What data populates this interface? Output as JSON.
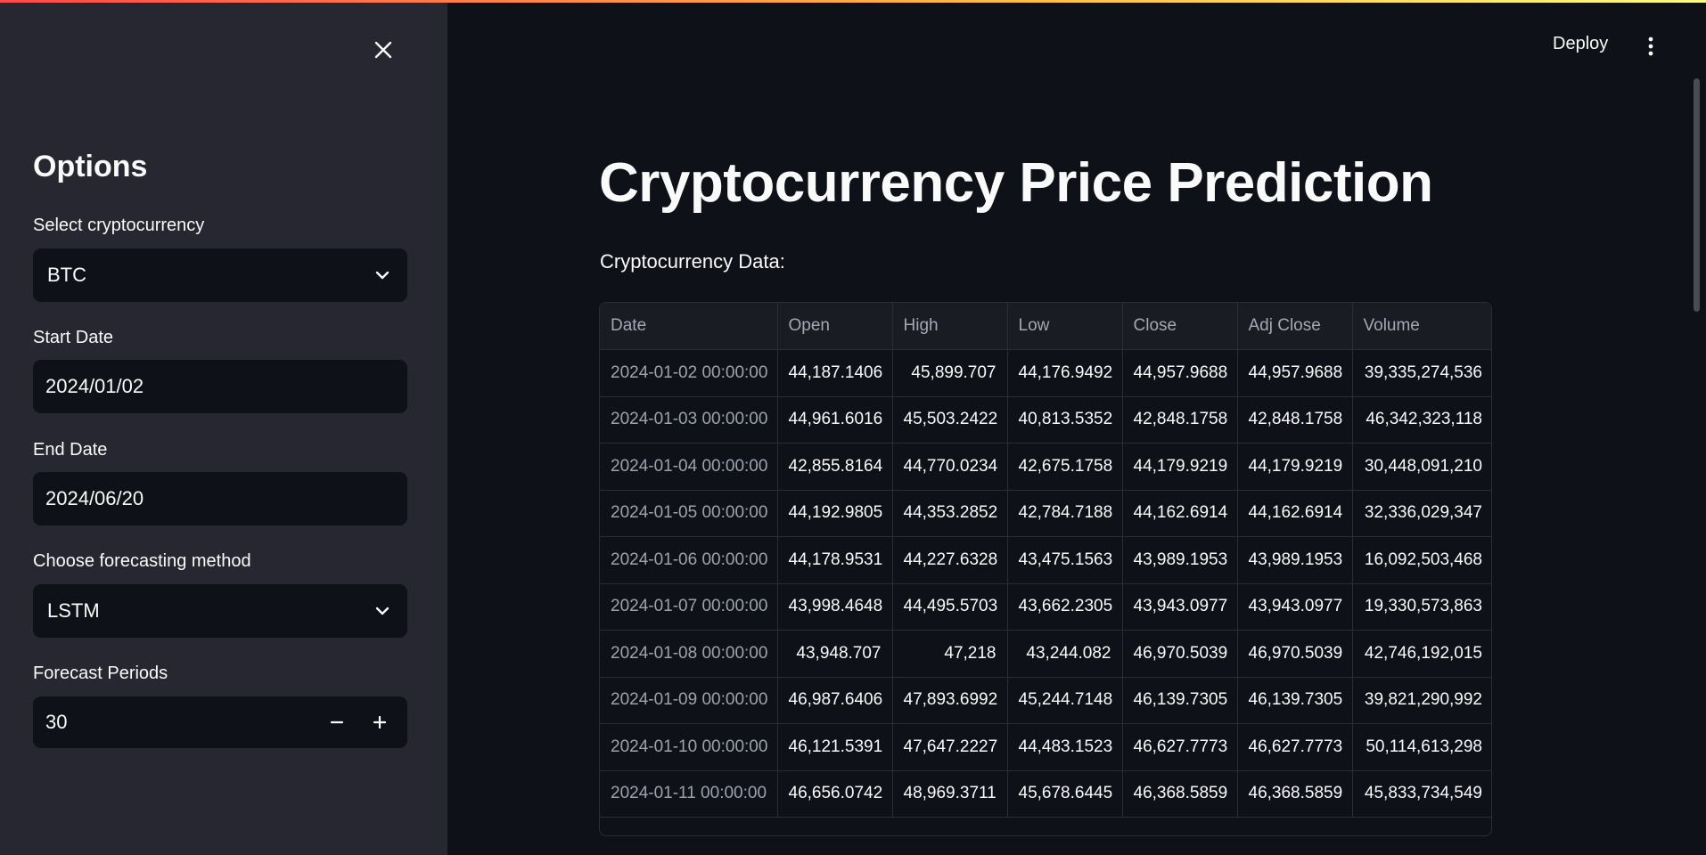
{
  "sidebar": {
    "heading": "Options",
    "crypto": {
      "label": "Select cryptocurrency",
      "value": "BTC"
    },
    "start_date": {
      "label": "Start Date",
      "value": "2024/01/02"
    },
    "end_date": {
      "label": "End Date",
      "value": "2024/06/20"
    },
    "method": {
      "label": "Choose forecasting method",
      "value": "LSTM"
    },
    "periods": {
      "label": "Forecast Periods",
      "value": "30",
      "minus": "−",
      "plus": "+"
    }
  },
  "header": {
    "deploy_label": "Deploy"
  },
  "main": {
    "title": "Cryptocurrency Price Prediction",
    "data_label": "Cryptocurrency Data:"
  },
  "table": {
    "headers": [
      "Date",
      "Open",
      "High",
      "Low",
      "Close",
      "Adj Close",
      "Volume"
    ],
    "rows": [
      [
        "2024-01-02 00:00:00",
        "44,187.1406",
        "45,899.707",
        "44,176.9492",
        "44,957.9688",
        "44,957.9688",
        "39,335,274,536"
      ],
      [
        "2024-01-03 00:00:00",
        "44,961.6016",
        "45,503.2422",
        "40,813.5352",
        "42,848.1758",
        "42,848.1758",
        "46,342,323,118"
      ],
      [
        "2024-01-04 00:00:00",
        "42,855.8164",
        "44,770.0234",
        "42,675.1758",
        "44,179.9219",
        "44,179.9219",
        "30,448,091,210"
      ],
      [
        "2024-01-05 00:00:00",
        "44,192.9805",
        "44,353.2852",
        "42,784.7188",
        "44,162.6914",
        "44,162.6914",
        "32,336,029,347"
      ],
      [
        "2024-01-06 00:00:00",
        "44,178.9531",
        "44,227.6328",
        "43,475.1563",
        "43,989.1953",
        "43,989.1953",
        "16,092,503,468"
      ],
      [
        "2024-01-07 00:00:00",
        "43,998.4648",
        "44,495.5703",
        "43,662.2305",
        "43,943.0977",
        "43,943.0977",
        "19,330,573,863"
      ],
      [
        "2024-01-08 00:00:00",
        "43,948.707",
        "47,218",
        "43,244.082",
        "46,970.5039",
        "46,970.5039",
        "42,746,192,015"
      ],
      [
        "2024-01-09 00:00:00",
        "46,987.6406",
        "47,893.6992",
        "45,244.7148",
        "46,139.7305",
        "46,139.7305",
        "39,821,290,992"
      ],
      [
        "2024-01-10 00:00:00",
        "46,121.5391",
        "47,647.2227",
        "44,483.1523",
        "46,627.7773",
        "46,627.7773",
        "50,114,613,298"
      ],
      [
        "2024-01-11 00:00:00",
        "46,656.0742",
        "48,969.3711",
        "45,678.6445",
        "46,368.5859",
        "46,368.5859",
        "45,833,734,549"
      ]
    ]
  }
}
